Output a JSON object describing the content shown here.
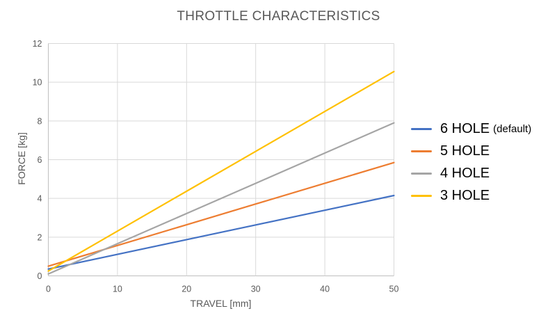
{
  "title": "THROTTLE CHARACTERISTICS",
  "colors": {
    "gridline": "#D9D9D9",
    "axis_line": "#BFBFBF",
    "tick_text": "#595959",
    "title_text": "#595959",
    "axis_title_text": "#595959",
    "legend_text": "#000000"
  },
  "chart_data": {
    "type": "line",
    "title": "THROTTLE CHARACTERISTICS",
    "xlabel": "TRAVEL [mm]",
    "ylabel": "FORCE [kg]",
    "xlim": [
      0,
      50
    ],
    "ylim": [
      0,
      12
    ],
    "x_ticks": [
      0,
      10,
      20,
      30,
      40,
      50
    ],
    "y_ticks": [
      0,
      2,
      4,
      6,
      8,
      10,
      12
    ],
    "grid": true,
    "legend_position": "right",
    "x": [
      0,
      10,
      20,
      30,
      40,
      50
    ],
    "series": [
      {
        "name": "6 HOLE",
        "suffix": "(default)",
        "color": "#4472C4",
        "values": [
          0.35,
          1.11,
          1.87,
          2.63,
          3.39,
          4.15
        ]
      },
      {
        "name": "5 HOLE",
        "suffix": "",
        "color": "#ED7D31",
        "values": [
          0.5,
          1.57,
          2.64,
          3.71,
          4.78,
          5.85
        ]
      },
      {
        "name": "4 HOLE",
        "suffix": "",
        "color": "#A5A5A5",
        "values": [
          0.1,
          1.66,
          3.22,
          4.78,
          6.34,
          7.9
        ]
      },
      {
        "name": "3 HOLE",
        "suffix": "",
        "color": "#FFC000",
        "values": [
          0.25,
          2.31,
          4.37,
          6.43,
          8.49,
          10.55
        ]
      }
    ]
  }
}
